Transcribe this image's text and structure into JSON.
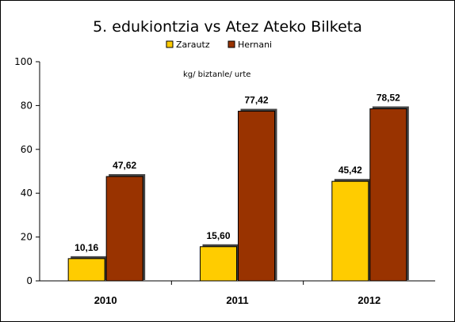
{
  "chart_data": {
    "type": "bar",
    "title": "5. edukiontzia vs Atez Ateko Bilketa",
    "annotation": "kg/ biztanle/ urte",
    "categories": [
      "2010",
      "2011",
      "2012"
    ],
    "series": [
      {
        "name": "Zarautz",
        "color": "#FFCC00",
        "values": [
          10.16,
          15.6,
          45.42
        ],
        "labels": [
          "10,16",
          "15,60",
          "45,42"
        ]
      },
      {
        "name": "Hernani",
        "color": "#993300",
        "values": [
          47.62,
          77.42,
          78.52
        ],
        "labels": [
          "47,62",
          "77,42",
          "78,52"
        ]
      }
    ],
    "ylim": [
      0,
      100
    ],
    "yticks": [
      0,
      20,
      40,
      60,
      80,
      100
    ],
    "ytick_labels": [
      "0",
      "20",
      "40",
      "60",
      "80",
      "100"
    ],
    "grid": false,
    "legend_position": "top"
  }
}
